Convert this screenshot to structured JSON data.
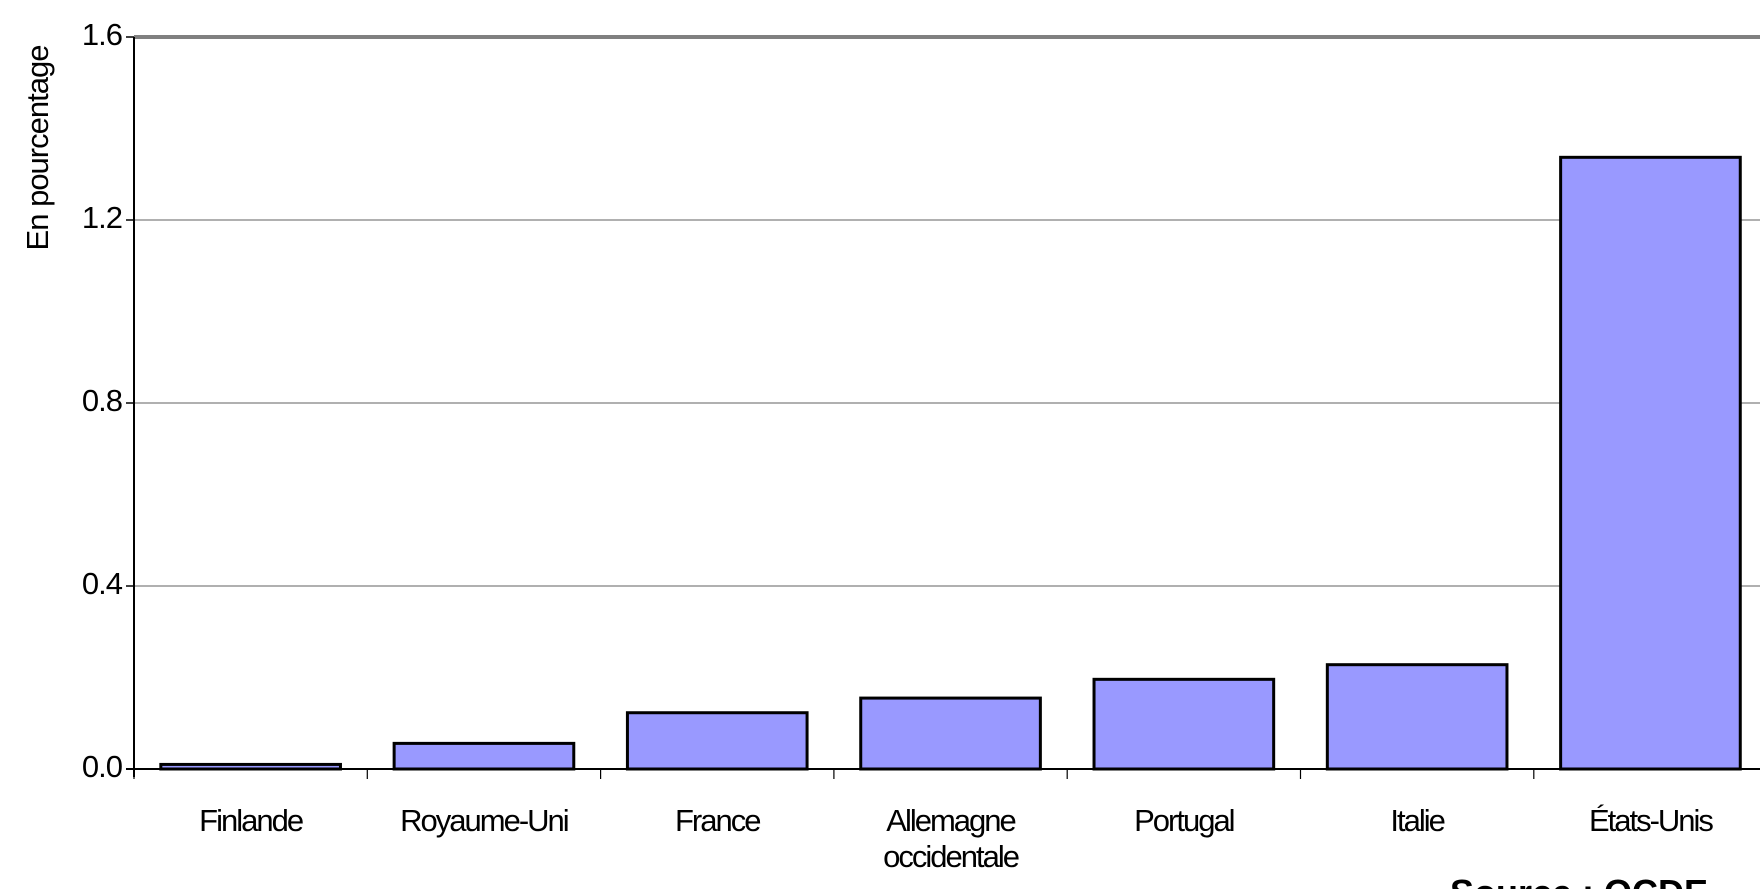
{
  "chart_data": {
    "type": "bar",
    "y_label": "En pourcentage",
    "source": "Source : OCDE",
    "categories": [
      "Finlande",
      "Royaume-Uni",
      "France",
      "Allemagne occidentale",
      "Portugal",
      "Italie",
      "États-Unis"
    ],
    "values": [
      0.01,
      0.056,
      0.123,
      0.155,
      0.196,
      0.228,
      1.337
    ],
    "color": "#9999ff",
    "ylim": [
      0,
      1.6
    ],
    "yticks": [
      {
        "value": 0,
        "label": "0.0"
      },
      0.4,
      0.8,
      1.2,
      1.6
    ],
    "grid": true
  }
}
